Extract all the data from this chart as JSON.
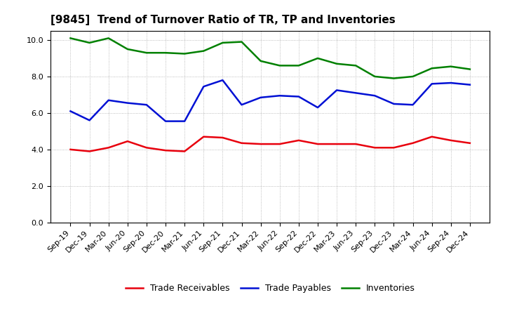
{
  "title": "[9845]  Trend of Turnover Ratio of TR, TP and Inventories",
  "x_labels": [
    "Sep-19",
    "Dec-19",
    "Mar-20",
    "Jun-20",
    "Sep-20",
    "Dec-20",
    "Mar-21",
    "Jun-21",
    "Sep-21",
    "Dec-21",
    "Mar-22",
    "Jun-22",
    "Sep-22",
    "Dec-22",
    "Mar-23",
    "Jun-23",
    "Sep-23",
    "Dec-23",
    "Mar-24",
    "Jun-24",
    "Sep-24",
    "Dec-24"
  ],
  "trade_receivables": [
    4.0,
    3.9,
    4.1,
    4.45,
    4.1,
    3.95,
    3.9,
    4.7,
    4.65,
    4.35,
    4.3,
    4.3,
    4.5,
    4.3,
    4.3,
    4.3,
    4.1,
    4.1,
    4.35,
    4.7,
    4.5,
    4.35
  ],
  "trade_payables": [
    6.1,
    5.6,
    6.7,
    6.55,
    6.45,
    5.55,
    5.55,
    7.45,
    7.8,
    6.45,
    6.85,
    6.95,
    6.9,
    6.3,
    7.25,
    7.1,
    6.95,
    6.5,
    6.45,
    7.6,
    7.65,
    7.55
  ],
  "inventories": [
    10.1,
    9.85,
    10.1,
    9.5,
    9.3,
    9.3,
    9.25,
    9.4,
    9.85,
    9.9,
    8.85,
    8.6,
    8.6,
    9.0,
    8.7,
    8.6,
    8.0,
    7.9,
    8.0,
    8.45,
    8.55,
    8.4
  ],
  "ylim": [
    0.0,
    10.5
  ],
  "yticks": [
    0.0,
    2.0,
    4.0,
    6.0,
    8.0,
    10.0
  ],
  "line_color_tr": "#e8000d",
  "line_color_tp": "#0010d4",
  "line_color_inv": "#008000",
  "legend_tr": "Trade Receivables",
  "legend_tp": "Trade Payables",
  "legend_inv": "Inventories",
  "bg_color": "#ffffff",
  "plot_bg_color": "#ffffff",
  "grid_color": "#aaaaaa",
  "title_fontsize": 11,
  "tick_fontsize": 8,
  "legend_fontsize": 9,
  "linewidth": 1.8
}
